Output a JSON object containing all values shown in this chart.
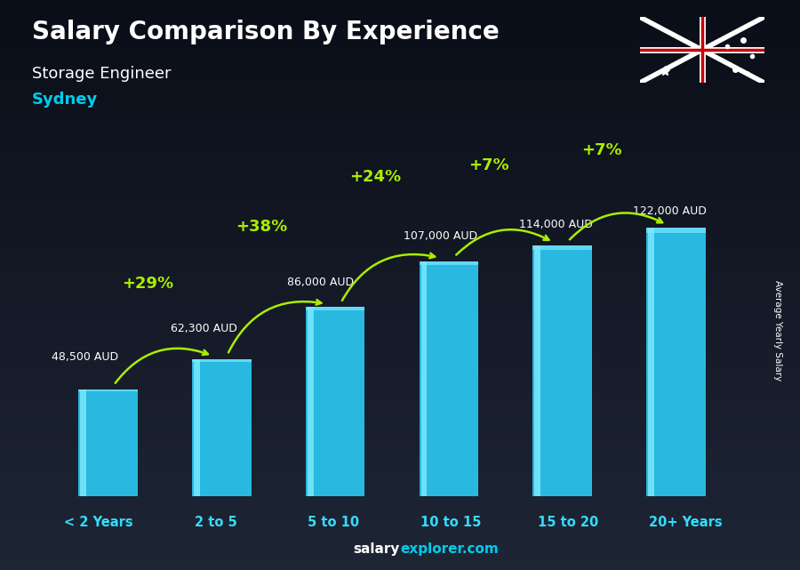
{
  "title": "Salary Comparison By Experience",
  "subtitle": "Storage Engineer",
  "city": "Sydney",
  "categories": [
    "< 2 Years",
    "2 to 5",
    "5 to 10",
    "10 to 15",
    "15 to 20",
    "20+ Years"
  ],
  "values": [
    48500,
    62300,
    86000,
    107000,
    114000,
    122000
  ],
  "value_labels": [
    "48,500 AUD",
    "62,300 AUD",
    "86,000 AUD",
    "107,000 AUD",
    "114,000 AUD",
    "122,000 AUD"
  ],
  "pct_changes": [
    "+29%",
    "+38%",
    "+24%",
    "+7%",
    "+7%"
  ],
  "bar_color": "#29b8e0",
  "bar_highlight": "#7ae8ff",
  "bar_shadow": "#1a8aaa",
  "bg_color_top": "#1a2030",
  "bg_color_bottom": "#0d1018",
  "text_color": "#ffffff",
  "city_color": "#00ccee",
  "pct_color": "#aaee00",
  "ylabel": "Average Yearly Salary",
  "ylim": [
    0,
    148000
  ],
  "bar_width": 0.52
}
